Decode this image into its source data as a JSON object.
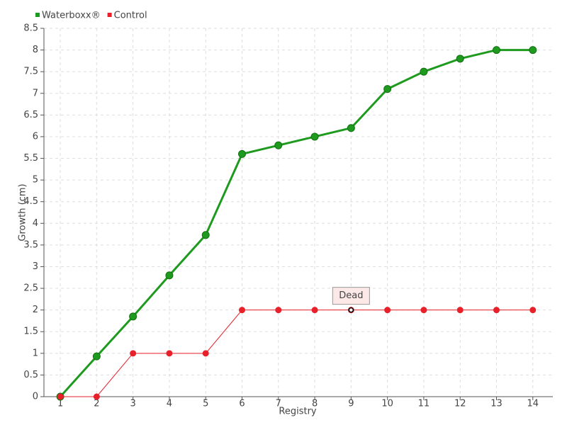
{
  "chart_data": {
    "type": "line",
    "x_label": "Registry",
    "y_label": "Growth (cm)",
    "categories": [
      "1",
      "2",
      "3",
      "4",
      "5",
      "6",
      "7",
      "8",
      "9",
      "10",
      "11",
      "12",
      "13",
      "14"
    ],
    "series": [
      {
        "name": "Waterboxx®",
        "color": "#1e9a1e",
        "values": [
          0,
          0.93,
          1.85,
          2.8,
          3.73,
          5.6,
          5.8,
          6.0,
          6.2,
          7.1,
          7.5,
          7.8,
          8.0,
          8.0
        ]
      },
      {
        "name": "Control",
        "color": "#e8202a",
        "values": [
          0,
          0,
          1,
          1,
          1,
          2,
          2,
          2,
          2,
          2,
          2,
          2,
          2,
          2
        ]
      }
    ],
    "ylim": [
      0,
      8.5
    ],
    "yticks": [
      0,
      0.5,
      1,
      1.5,
      2,
      2.5,
      3,
      3.5,
      4,
      4.5,
      5,
      5.5,
      6,
      6.5,
      7,
      7.5,
      8,
      8.5
    ],
    "grid": true,
    "legend": "top-left",
    "annotations": [
      {
        "text": "Dead",
        "series": "Control",
        "x": "9"
      }
    ]
  }
}
